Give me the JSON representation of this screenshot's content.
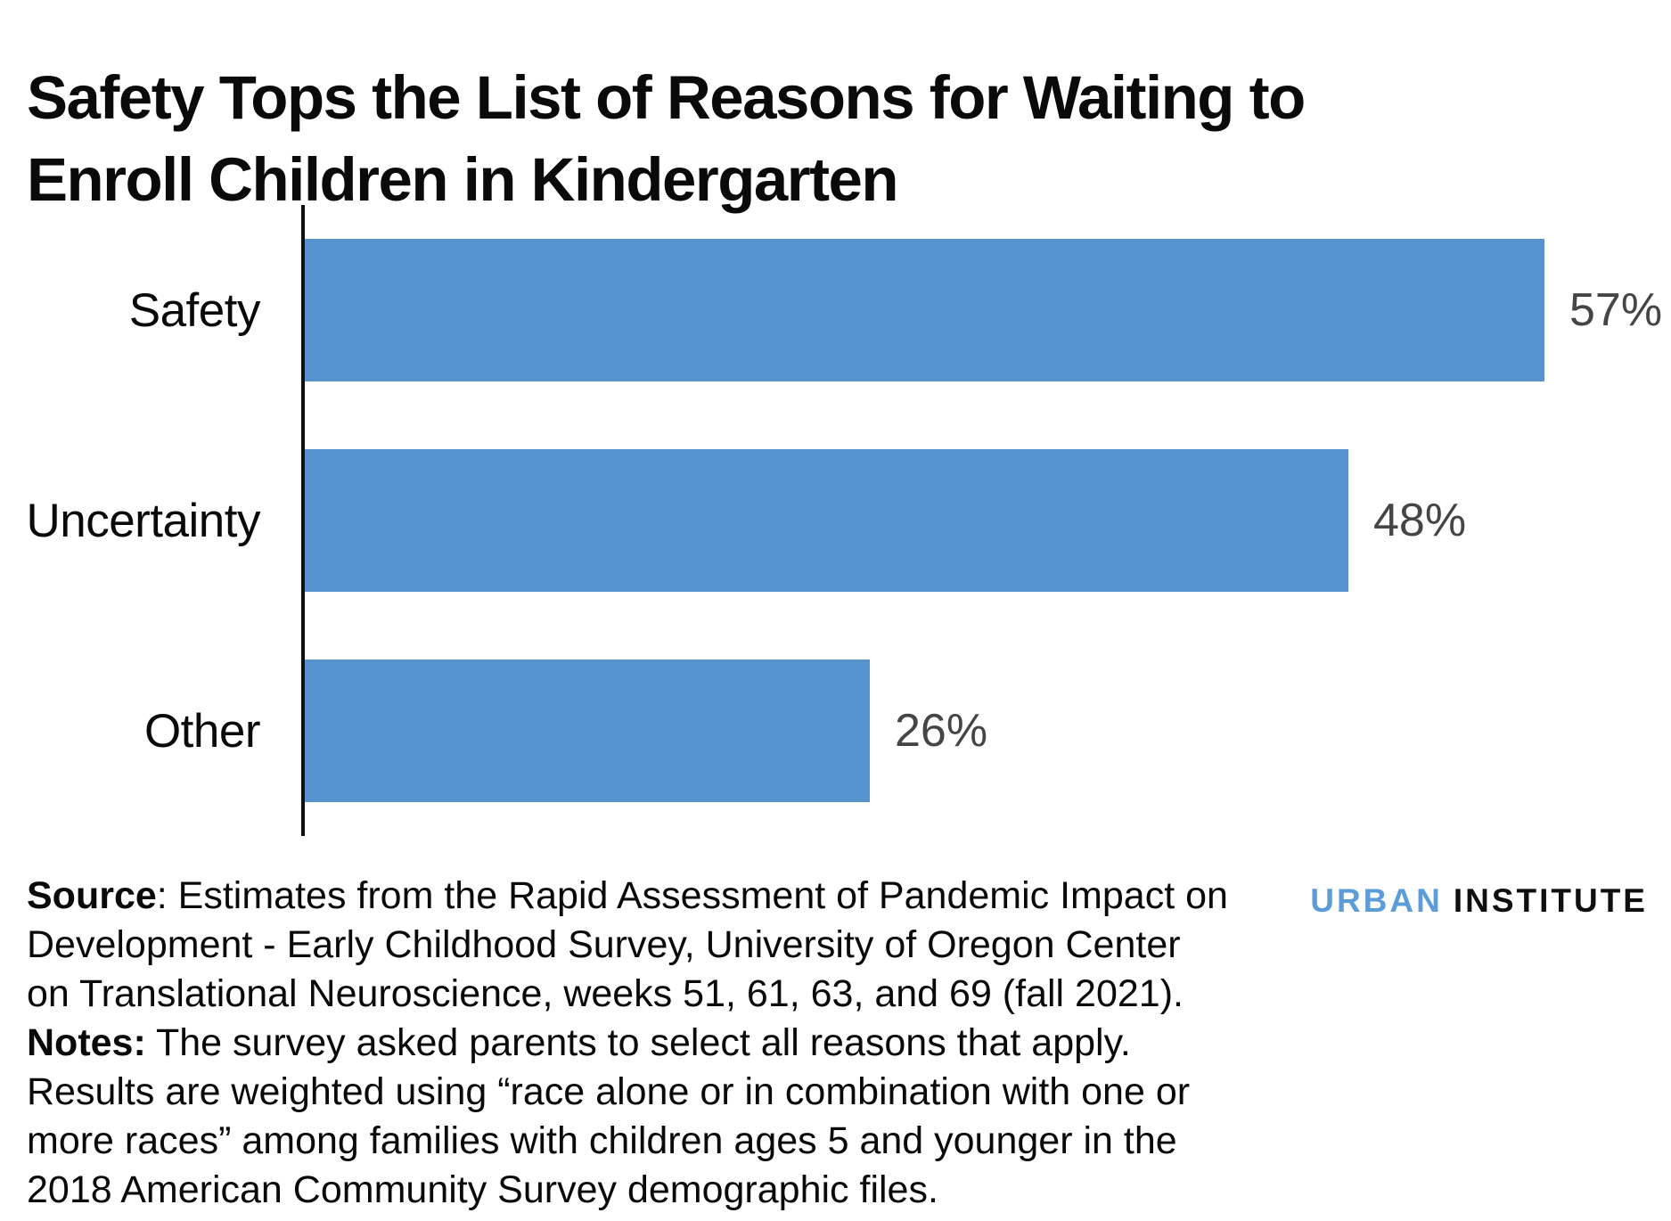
{
  "title": "Safety Tops the List of Reasons for Waiting to\nEnroll Children in Kindergarten",
  "chart_data": {
    "type": "bar",
    "orientation": "horizontal",
    "title": "Safety Tops the List of Reasons for Waiting to Enroll Children in Kindergarten",
    "categories": [
      "Safety",
      "Uncertainty",
      "Other"
    ],
    "values": [
      57,
      48,
      26
    ],
    "value_labels": [
      "57%",
      "48%",
      "26%"
    ],
    "unit": "percent",
    "xlim": [
      0,
      60
    ],
    "grid": false,
    "legend": false,
    "bar_color": "#5793CE",
    "value_label_color": "#454545",
    "axis_color": "#0f0f0f"
  },
  "footer": {
    "source_label": "Source",
    "source_text": ": Estimates from the Rapid Assessment of Pandemic Impact on\nDevelopment - Early Childhood Survey, University of Oregon Center\non Translational Neuroscience, weeks 51, 61, 63, and 69 (fall 2021).",
    "notes_label": "Notes:",
    "notes_text": " The survey asked parents to select all reasons that apply.\nResults are weighted using “race alone or in combination with one or\nmore races” among families with children ages 5 and younger in the\n2018 American Community Survey demographic files."
  },
  "logo": {
    "word1": "URBAN",
    "word2": "INSTITUTE",
    "word1_color": "#5C9CD9",
    "word2_color": "#0f0f0f"
  }
}
